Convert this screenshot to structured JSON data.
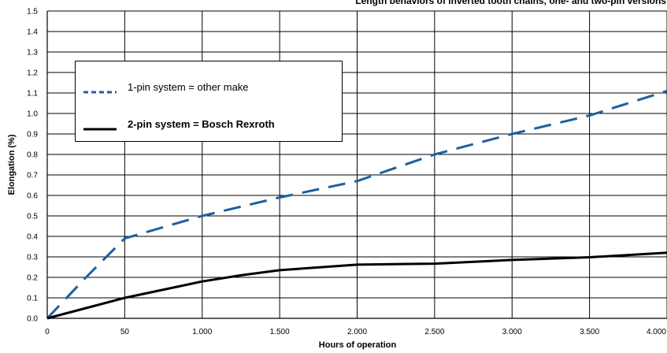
{
  "chart_data": {
    "type": "line",
    "title": "Length behaviors of inverted tooth chains, one- and two-pin versions",
    "xlabel": "Hours of operation",
    "ylabel": "Elongation (%)",
    "xlim": [
      0,
      4000
    ],
    "ylim": [
      0,
      1.5
    ],
    "x_ticks": [
      "0",
      "50",
      "1.000",
      "1.500",
      "2.000",
      "2.500",
      "3.000",
      "3.500",
      "4.000"
    ],
    "y_ticks": [
      "0.0",
      "0.1",
      "0.2",
      "0.3",
      "0.4",
      "0.5",
      "0.6",
      "0.7",
      "0.8",
      "0.9",
      "1.0",
      "1.1",
      "1.2",
      "1.3",
      "1.4",
      "1.5"
    ],
    "grid": true,
    "legend_placement": "upper-left",
    "series": [
      {
        "name": "1-pin system = other make",
        "color": "#1f5fa0",
        "style": "dashed",
        "x": [
          0,
          250,
          500,
          1000,
          1500,
          2000,
          2500,
          3000,
          3500,
          4000
        ],
        "y": [
          0.0,
          0.2,
          0.39,
          0.5,
          0.59,
          0.67,
          0.8,
          0.9,
          0.99,
          1.11
        ]
      },
      {
        "name": "2-pin system = Bosch Rexroth",
        "color": "#000000",
        "style": "solid",
        "x": [
          0,
          250,
          500,
          750,
          1000,
          1250,
          1500,
          2000,
          2500,
          3000,
          3500,
          4000
        ],
        "y": [
          0.0,
          0.05,
          0.1,
          0.14,
          0.18,
          0.21,
          0.235,
          0.262,
          0.267,
          0.285,
          0.298,
          0.32
        ]
      }
    ]
  }
}
